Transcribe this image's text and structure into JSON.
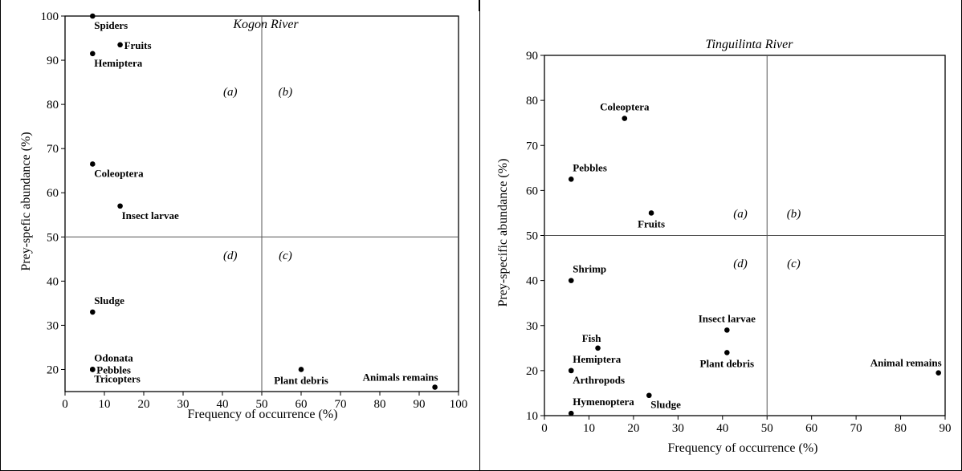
{
  "chart_data": [
    {
      "type": "scatter",
      "title": "Kogon River",
      "xlabel": "Frequency of occurrence (%)",
      "ylabel": "Prey-spefic abundance (%)",
      "xlim": [
        0,
        100
      ],
      "ylim": [
        15,
        100
      ],
      "xticks": [
        0,
        10,
        20,
        30,
        40,
        50,
        60,
        70,
        80,
        90,
        100
      ],
      "yticks": [
        20,
        30,
        40,
        50,
        60,
        70,
        80,
        90,
        100
      ],
      "grid": false,
      "reference_lines": {
        "x": 50,
        "y": 50
      },
      "quadrant_labels": [
        {
          "label": "(a)",
          "x": 42,
          "y": 82
        },
        {
          "label": "(b)",
          "x": 56,
          "y": 82
        },
        {
          "label": "(d)",
          "x": 42,
          "y": 45
        },
        {
          "label": "(c)",
          "x": 56,
          "y": 45
        }
      ],
      "points": [
        {
          "label": "Spiders",
          "x": 7,
          "y": 100,
          "anchor": "below-right"
        },
        {
          "label": "Fruits",
          "x": 14,
          "y": 93.5,
          "anchor": "right"
        },
        {
          "label": "Hemiptera",
          "x": 7,
          "y": 91.5,
          "anchor": "below-right"
        },
        {
          "label": "Coleoptera",
          "x": 7,
          "y": 66.5,
          "anchor": "below-right"
        },
        {
          "label": "Insect larvae",
          "x": 14,
          "y": 57,
          "anchor": "below-right"
        },
        {
          "label": "Sludge",
          "x": 7,
          "y": 33,
          "anchor": "above-right"
        },
        {
          "label": "Odonata",
          "x": 7,
          "y": 20,
          "anchor": "above-right"
        },
        {
          "label": "Pebbles",
          "x": 7,
          "y": 20,
          "anchor": "right"
        },
        {
          "label": "Tricopters",
          "x": 7,
          "y": 20,
          "anchor": "below-right"
        },
        {
          "label": "Plant debris",
          "x": 60,
          "y": 20,
          "anchor": "below"
        },
        {
          "label": "Animals remains",
          "x": 94,
          "y": 16,
          "anchor": "above-left"
        }
      ]
    },
    {
      "type": "scatter",
      "title": "Tinguilinta River",
      "xlabel": "Frequency of occurrence (%)",
      "ylabel": "Prey-specific abundance (%)",
      "xlim": [
        0,
        90
      ],
      "ylim": [
        10,
        90
      ],
      "xticks": [
        0,
        10,
        20,
        30,
        40,
        50,
        60,
        70,
        80,
        90
      ],
      "yticks": [
        10,
        20,
        30,
        40,
        50,
        60,
        70,
        80,
        90
      ],
      "grid": false,
      "reference_lines": {
        "x": 50,
        "y": 50
      },
      "quadrant_labels": [
        {
          "label": "(a)",
          "x": 44,
          "y": 54
        },
        {
          "label": "(b)",
          "x": 56,
          "y": 54
        },
        {
          "label": "(d)",
          "x": 44,
          "y": 43
        },
        {
          "label": "(c)",
          "x": 56,
          "y": 43
        }
      ],
      "points": [
        {
          "label": "Coleoptera",
          "x": 18,
          "y": 76,
          "anchor": "above"
        },
        {
          "label": "Pebbles",
          "x": 6,
          "y": 62.5,
          "anchor": "above-right"
        },
        {
          "label": "Fruits",
          "x": 24,
          "y": 55,
          "anchor": "below"
        },
        {
          "label": "Shrimp",
          "x": 6,
          "y": 40,
          "anchor": "above-right"
        },
        {
          "label": "Insect larvae",
          "x": 41,
          "y": 29,
          "anchor": "above"
        },
        {
          "label": "Fish",
          "x": 12,
          "y": 25,
          "anchor": "above-left"
        },
        {
          "label": "Plant debris",
          "x": 41,
          "y": 24,
          "anchor": "below"
        },
        {
          "label": "Hemiptera",
          "x": 6,
          "y": 20,
          "anchor": "above-right"
        },
        {
          "label": "Arthropods",
          "x": 6,
          "y": 20,
          "anchor": "below-right"
        },
        {
          "label": "Animal remains",
          "x": 88.5,
          "y": 19.5,
          "anchor": "above-left"
        },
        {
          "label": "Sludge",
          "x": 23.5,
          "y": 14.5,
          "anchor": "below-right"
        },
        {
          "label": "Hymenoptera",
          "x": 6,
          "y": 10.5,
          "anchor": "above-right"
        }
      ]
    }
  ]
}
